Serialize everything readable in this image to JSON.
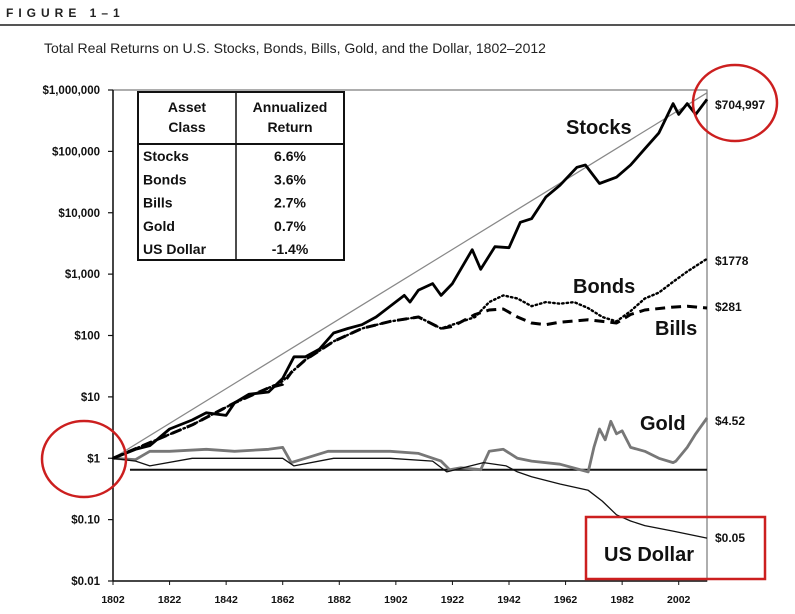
{
  "figure": {
    "label": "FIGURE 1–1",
    "title": "Total Real Returns on U.S. Stocks, Bonds, Bills, Gold, and the Dollar, 1802–2012"
  },
  "chart_data": {
    "type": "line",
    "title": "Total Real Returns on U.S. Stocks, Bonds, Bills, Gold, and the Dollar, 1802–2012",
    "xlabel": "",
    "ylabel": "",
    "yscale": "log",
    "xlim": [
      1802,
      2012
    ],
    "ylim": [
      0.01,
      1000000
    ],
    "y_ticks": [
      {
        "value": 1000000,
        "label": "$1,000,000"
      },
      {
        "value": 100000,
        "label": "$100,000"
      },
      {
        "value": 10000,
        "label": "$10,000"
      },
      {
        "value": 1000,
        "label": "$1,000"
      },
      {
        "value": 100,
        "label": "$100"
      },
      {
        "value": 10,
        "label": "$10"
      },
      {
        "value": 1,
        "label": "$1"
      },
      {
        "value": 0.1,
        "label": "$0.10"
      },
      {
        "value": 0.01,
        "label": "$0.01"
      }
    ],
    "x_ticks": [
      "1802",
      "1822",
      "1842",
      "1862",
      "1882",
      "1902",
      "1922",
      "1942",
      "1962",
      "1982",
      "2002"
    ],
    "series": [
      {
        "name": "Stocks",
        "style": "solid-thick",
        "color": "#000000",
        "end_label": "$704,997",
        "x": [
          1802,
          1810,
          1815,
          1822,
          1830,
          1835,
          1842,
          1845,
          1850,
          1857,
          1862,
          1866,
          1870,
          1875,
          1880,
          1885,
          1890,
          1895,
          1900,
          1905,
          1907,
          1910,
          1915,
          1918,
          1922,
          1929,
          1932,
          1937,
          1942,
          1946,
          1950,
          1955,
          1960,
          1966,
          1969,
          1974,
          1980,
          1985,
          1990,
          1995,
          2000,
          2002,
          2005,
          2008,
          2012
        ],
        "values": [
          1,
          1.4,
          1.6,
          3,
          4.2,
          5.5,
          5,
          8,
          11,
          12,
          20,
          45,
          45,
          60,
          110,
          130,
          150,
          200,
          300,
          450,
          350,
          550,
          700,
          450,
          700,
          2500,
          1200,
          2800,
          2700,
          7000,
          8000,
          18000,
          28000,
          55000,
          60000,
          30000,
          38000,
          60000,
          110000,
          200000,
          600000,
          400000,
          600000,
          400000,
          704997
        ]
      },
      {
        "name": "Bonds",
        "style": "dotted",
        "color": "#000000",
        "end_label": "$1778",
        "x": [
          1802,
          1815,
          1830,
          1845,
          1857,
          1862,
          1865,
          1870,
          1880,
          1890,
          1900,
          1910,
          1918,
          1922,
          1930,
          1935,
          1940,
          1945,
          1950,
          1955,
          1960,
          1965,
          1970,
          1975,
          1980,
          1985,
          1990,
          1995,
          2000,
          2005,
          2012
        ],
        "values": [
          1,
          1.8,
          3.5,
          8,
          14,
          18,
          25,
          40,
          80,
          130,
          170,
          200,
          130,
          150,
          200,
          350,
          450,
          400,
          300,
          350,
          330,
          350,
          280,
          200,
          170,
          250,
          400,
          500,
          750,
          1100,
          1778
        ]
      },
      {
        "name": "Bills",
        "style": "dashed",
        "color": "#000000",
        "end_label": "$281",
        "x": [
          1802,
          1815,
          1830,
          1845,
          1857,
          1862,
          1865,
          1870,
          1880,
          1890,
          1900,
          1910,
          1918,
          1922,
          1930,
          1935,
          1940,
          1945,
          1950,
          1955,
          1960,
          1970,
          1980,
          1985,
          1990,
          2000,
          2005,
          2012
        ],
        "values": [
          1,
          1.8,
          3.5,
          8,
          14,
          16,
          25,
          40,
          80,
          130,
          170,
          200,
          130,
          140,
          220,
          260,
          270,
          200,
          160,
          150,
          165,
          180,
          160,
          220,
          260,
          290,
          300,
          281
        ]
      },
      {
        "name": "Gold",
        "style": "solid-gray",
        "color": "#777777",
        "end_label": "$4.52",
        "x": [
          1802,
          1810,
          1815,
          1822,
          1835,
          1845,
          1857,
          1862,
          1865,
          1870,
          1878,
          1890,
          1900,
          1910,
          1918,
          1921,
          1925,
          1932,
          1935,
          1940,
          1945,
          1950,
          1960,
          1970,
          1972,
          1974,
          1976,
          1978,
          1980,
          1982,
          1985,
          1990,
          1995,
          2000,
          2001,
          2005,
          2008,
          2012
        ],
        "values": [
          1,
          0.95,
          1.3,
          1.3,
          1.4,
          1.3,
          1.4,
          1.5,
          0.85,
          1.0,
          1.3,
          1.3,
          1.3,
          1.2,
          0.9,
          0.65,
          0.7,
          0.65,
          1.3,
          1.4,
          1.0,
          0.9,
          0.8,
          0.6,
          1.5,
          3.0,
          2.0,
          4.0,
          2.5,
          2.8,
          1.5,
          1.3,
          1.0,
          0.85,
          0.9,
          1.5,
          2.5,
          4.52
        ]
      },
      {
        "name": "US Dollar",
        "style": "solid-thin",
        "color": "#000000",
        "end_label": "$0.05",
        "x": [
          1802,
          1810,
          1815,
          1830,
          1850,
          1862,
          1866,
          1880,
          1900,
          1915,
          1920,
          1933,
          1941,
          1945,
          1950,
          1960,
          1970,
          1975,
          1980,
          1985,
          1990,
          2000,
          2012
        ],
        "values": [
          1,
          0.9,
          0.75,
          1.0,
          1.0,
          1.0,
          0.75,
          1.0,
          1.0,
          0.9,
          0.6,
          0.85,
          0.75,
          0.6,
          0.5,
          0.38,
          0.3,
          0.2,
          0.12,
          0.095,
          0.08,
          0.065,
          0.05
        ]
      }
    ],
    "reference_line": {
      "name": "Flat baseline",
      "value": 0.65
    },
    "trend_line": {
      "name": "Stocks trend",
      "from": [
        1802,
        1.0
      ],
      "to": [
        2012,
        900000
      ]
    },
    "table": {
      "headers": [
        "Asset Class",
        "Annualized Return"
      ],
      "rows": [
        [
          "Stocks",
          "6.6%"
        ],
        [
          "Bonds",
          "3.6%"
        ],
        [
          "Bills",
          "2.7%"
        ],
        [
          "Gold",
          "0.7%"
        ],
        [
          "US Dollar",
          "-1.4%"
        ]
      ]
    }
  },
  "table_header": {
    "col1_line1": "Asset",
    "col1_line2": "Class",
    "col2_line1": "Annualized",
    "col2_line2": "Return"
  },
  "labels": {
    "stocks": "Stocks",
    "bonds": "Bonds",
    "bills": "Bills",
    "gold": "Gold",
    "dollar": "US Dollar"
  },
  "annotation_colors": {
    "circle": "#cc1f1f",
    "box": "#cc1f1f"
  }
}
